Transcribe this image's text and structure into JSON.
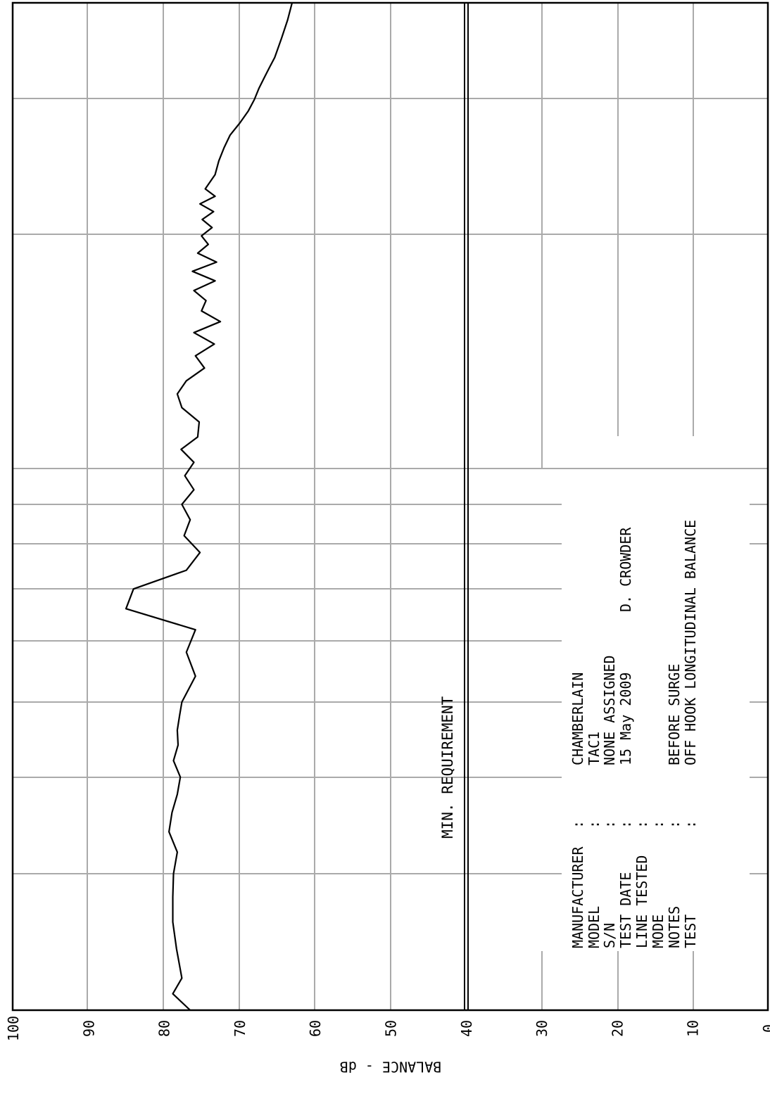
{
  "chart_data": {
    "type": "line",
    "title": "",
    "xlabel": "",
    "ylabel": "BALANCE - dB",
    "ylim": [
      0,
      100
    ],
    "x_axis_scale": "log",
    "y_ticks": [
      "100",
      "90",
      "80",
      "70",
      "60",
      "50",
      "40",
      "30",
      "20",
      "10",
      "0"
    ],
    "grid": true,
    "series": [
      {
        "name": "",
        "x": [
          200,
          210,
          220,
          240,
          260,
          280,
          300,
          320,
          340,
          360,
          380,
          400,
          420,
          440,
          460,
          480,
          500,
          540,
          580,
          620,
          660,
          700,
          740,
          780,
          820,
          860,
          900,
          940,
          980,
          1020,
          1060,
          1100,
          1150,
          1200,
          1250,
          1300,
          1350,
          1400,
          1450,
          1500,
          1550,
          1600,
          1650,
          1700,
          1750,
          1800,
          1850,
          1900,
          1950,
          2000,
          2050,
          2100,
          2150,
          2200,
          2250,
          2300,
          2400,
          2500,
          2600,
          2700,
          2800,
          2900,
          3000,
          3100,
          3200,
          3300,
          3400,
          3600,
          3800,
          4000
        ],
        "values": [
          76.5,
          78.8,
          77.6,
          78.3,
          78.8,
          78.8,
          78.7,
          78.2,
          79.3,
          78.9,
          78.2,
          77.8,
          78.7,
          78.1,
          78.2,
          77.9,
          77.6,
          75.8,
          77.0,
          75.8,
          85.0,
          84.0,
          77.0,
          75.2,
          77.3,
          76.5,
          77.6,
          76.0,
          77.2,
          76.0,
          77.7,
          75.5,
          75.3,
          77.6,
          78.2,
          77.0,
          74.6,
          75.8,
          73.3,
          76.0,
          72.5,
          75.0,
          74.4,
          76.0,
          73.2,
          76.2,
          73.0,
          75.5,
          74.1,
          75.0,
          73.6,
          74.9,
          73.4,
          75.2,
          73.2,
          74.5,
          73.2,
          72.7,
          72.0,
          71.2,
          69.9,
          68.8,
          68.0,
          67.4,
          66.7,
          66.0,
          65.3,
          64.4,
          63.6,
          63.0
        ]
      }
    ],
    "annotations": [
      {
        "text": "MIN. REQUIREMENT",
        "value": 40
      }
    ]
  },
  "info_block": {
    "rows": [
      {
        "label": "MANUFACTURER",
        "value": "CHAMBERLAIN"
      },
      {
        "label": "MODEL",
        "value": "TAC1"
      },
      {
        "label": "S/N",
        "value": "NONE ASSIGNED"
      },
      {
        "label": "TEST DATE",
        "value": "15 May 2009"
      },
      {
        "label": "LINE TESTED",
        "value": ""
      },
      {
        "label": "MODE",
        "value": ""
      },
      {
        "label": "NOTES",
        "value": "BEFORE SURGE"
      },
      {
        "label": "TEST",
        "value": "OFF HOOK LONGITUDINAL BALANCE"
      }
    ],
    "separator": ":",
    "tester": "D. CROWDER"
  }
}
